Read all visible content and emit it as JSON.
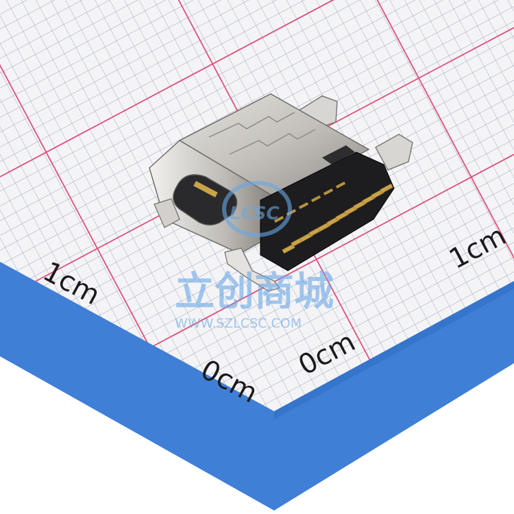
{
  "photo": {
    "subject": "usb-type-c-receptacle-smd",
    "background": "grid-measurement-mat"
  },
  "scale_labels": {
    "left_1cm": "1cm",
    "right_1cm": "1cm",
    "left_0cm": "0cm",
    "right_0cm": "0cm"
  },
  "watermark": {
    "brand_logo": "LCSC",
    "chinese_text": "立创商城",
    "url": "WWW.SZLCSC.COM"
  },
  "colors": {
    "paper": "#f4f4f6",
    "fine_grid": "#9aa3b8",
    "major_grid": "#e0507a",
    "blue_band": "#3f7fd6",
    "metal_shell": "#c9c6c2",
    "metal_dark": "#8e8b86",
    "housing_black": "#1d1d1f",
    "gold_pins": "#c9a24a",
    "watermark": "#6aa7e6"
  }
}
